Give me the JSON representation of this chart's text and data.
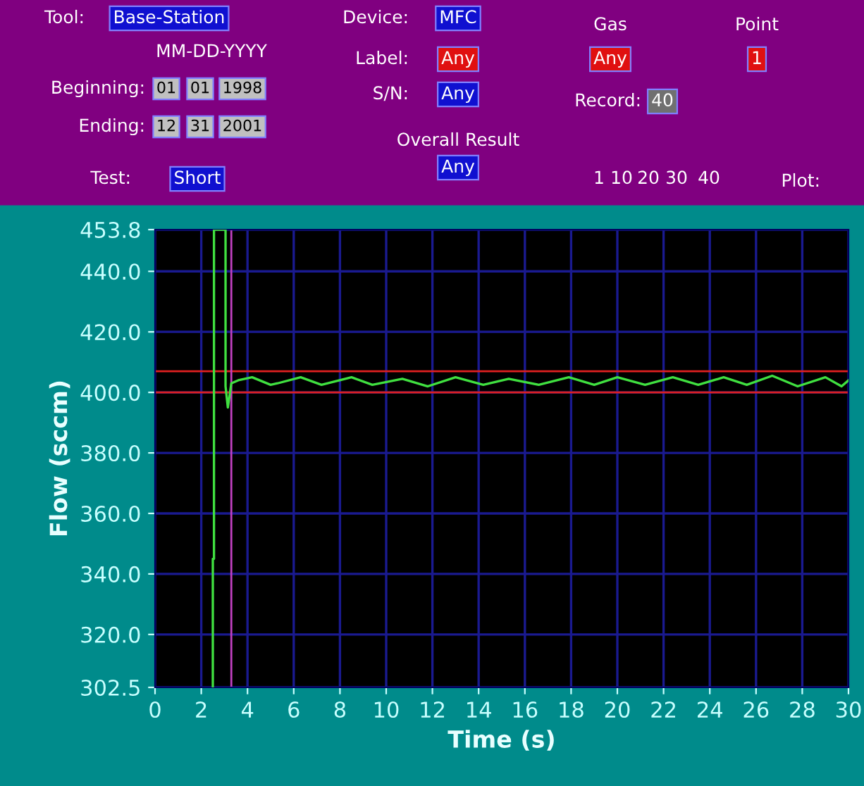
{
  "chart_data": {
    "type": "line",
    "xlabel": "Time (s)",
    "ylabel": "Flow (sccm)",
    "series": [
      {
        "color": "#40e040",
        "x": [
          2.5,
          2.5,
          2.55,
          2.55,
          3.05,
          3.05,
          3.15,
          3.3,
          3.6,
          4.2,
          5.0,
          5.3,
          6.3,
          7.2,
          8.5,
          9.4,
          10.7,
          11.8,
          13.0,
          14.2,
          15.3,
          16.6,
          17.9,
          19.0,
          20.0,
          21.2,
          22.4,
          23.5,
          24.6,
          25.6,
          26.7,
          27.8,
          29.0,
          29.7,
          30.0
        ],
        "values": [
          302.5,
          345.0,
          345.0,
          453.8,
          453.8,
          402.0,
          395.0,
          403.0,
          404.0,
          405.0,
          402.5,
          403.0,
          405.0,
          402.5,
          405.0,
          402.5,
          404.5,
          402.0,
          405.0,
          402.5,
          404.5,
          402.5,
          405.0,
          402.5,
          405.0,
          402.5,
          405.0,
          402.5,
          405.0,
          402.5,
          405.5,
          402.0,
          405.0,
          402.0,
          404.0
        ]
      }
    ],
    "xlim": [
      0,
      30
    ],
    "xticks": [
      0,
      2,
      4,
      6,
      8,
      10,
      12,
      14,
      16,
      18,
      20,
      22,
      24,
      26,
      28,
      30
    ],
    "ylim": [
      302.5,
      453.8
    ],
    "yticks": [
      {
        "value": 302.5,
        "label": "302.5"
      },
      {
        "value": 320,
        "label": "320.0"
      },
      {
        "value": 340,
        "label": "340.0"
      },
      {
        "value": 360,
        "label": "360.0"
      },
      {
        "value": 380,
        "label": "380.0"
      },
      {
        "value": 400,
        "label": "400.0"
      },
      {
        "value": 420,
        "label": "420.0"
      },
      {
        "value": 440,
        "label": "440.0"
      },
      {
        "value": 453.8,
        "label": "453.8"
      }
    ],
    "grid": true,
    "legend": false,
    "marker": "none",
    "line_style": "solid",
    "ref_lines": [
      {
        "axis": "y",
        "value": 400,
        "color": "#e02020"
      },
      {
        "axis": "y",
        "value": 407,
        "color": "#e02020"
      },
      {
        "axis": "x",
        "value": 3.3,
        "color": "#c040c0"
      }
    ],
    "annotations": [
      "Tool:",
      "Base-Station",
      "Device:",
      "MFC",
      "MM-DD-YYYY",
      "Label:",
      "Any",
      "Gas",
      "Any",
      "Point",
      "1",
      "Beginning:",
      "01",
      "01",
      "1998",
      "S/N:",
      "Any",
      "Record:",
      "40",
      "Ending:",
      "12",
      "31",
      "2001",
      "Overall Result",
      "Any",
      "Test:",
      "Short",
      "1",
      "10",
      "20",
      "30",
      "40",
      "Plot:"
    ]
  }
}
